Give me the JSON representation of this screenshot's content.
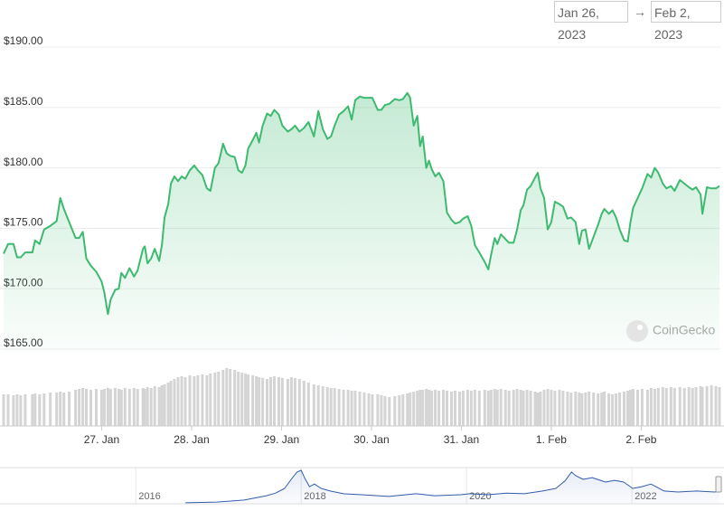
{
  "date_range": {
    "from": "Jan 26, 2023",
    "separator": "→",
    "to": "Feb 2, 2023"
  },
  "watermark": "CoinGecko",
  "chart_data": [
    {
      "type": "area",
      "color": "#3dba6f",
      "grid": true,
      "xlim": [
        -0.1,
        7.88
      ],
      "ylim": [
        164.7,
        191.2
      ],
      "xticks": [
        {
          "value": 1,
          "label": "27. Jan"
        },
        {
          "value": 2,
          "label": "28. Jan"
        },
        {
          "value": 3,
          "label": "29. Jan"
        },
        {
          "value": 4,
          "label": "30. Jan"
        },
        {
          "value": 5,
          "label": "31. Jan"
        },
        {
          "value": 6,
          "label": "1. Feb"
        },
        {
          "value": 7,
          "label": "2. Feb"
        }
      ],
      "yticks": [
        {
          "value": 165,
          "label": "$165.00"
        },
        {
          "value": 170,
          "label": "$170.00"
        },
        {
          "value": 175,
          "label": "$175.00"
        },
        {
          "value": 180,
          "label": "$180.00"
        },
        {
          "value": 185,
          "label": "$185.00"
        },
        {
          "value": 190,
          "label": "$190.00"
        }
      ],
      "x": [
        -0.09,
        -0.04,
        0.02,
        0.06,
        0.1,
        0.15,
        0.23,
        0.26,
        0.31,
        0.36,
        0.43,
        0.5,
        0.54,
        0.58,
        0.64,
        0.71,
        0.75,
        0.79,
        0.83,
        0.88,
        0.94,
        1.0,
        1.03,
        1.07,
        1.1,
        1.15,
        1.19,
        1.22,
        1.26,
        1.31,
        1.36,
        1.4,
        1.46,
        1.48,
        1.51,
        1.55,
        1.59,
        1.64,
        1.67,
        1.7,
        1.74,
        1.77,
        1.81,
        1.85,
        1.89,
        1.93,
        1.98,
        2.03,
        2.07,
        2.12,
        2.17,
        2.21,
        2.26,
        2.3,
        2.35,
        2.39,
        2.43,
        2.48,
        2.52,
        2.56,
        2.6,
        2.63,
        2.68,
        2.72,
        2.75,
        2.79,
        2.84,
        2.88,
        2.92,
        2.97,
        3.01,
        3.07,
        3.11,
        3.15,
        3.2,
        3.25,
        3.3,
        3.36,
        3.41,
        3.46,
        3.51,
        3.55,
        3.59,
        3.64,
        3.69,
        3.74,
        3.78,
        3.82,
        3.87,
        3.92,
        3.97,
        4.01,
        4.07,
        4.11,
        4.15,
        4.2,
        4.26,
        4.31,
        4.35,
        4.4,
        4.43,
        4.47,
        4.51,
        4.54,
        4.57,
        4.61,
        4.64,
        4.67,
        4.71,
        4.75,
        4.8,
        4.84,
        4.89,
        4.93,
        4.98,
        5.02,
        5.07,
        5.11,
        5.15,
        5.2,
        5.26,
        5.3,
        5.33,
        5.37,
        5.4,
        5.44,
        5.49,
        5.53,
        5.58,
        5.62,
        5.66,
        5.69,
        5.73,
        5.77,
        5.82,
        5.85,
        5.88,
        5.92,
        5.96,
        6.0,
        6.04,
        6.09,
        6.13,
        6.18,
        6.22,
        6.27,
        6.31,
        6.34,
        6.38,
        6.42,
        6.47,
        6.52,
        6.56,
        6.59,
        6.64,
        6.68,
        6.72,
        6.76,
        6.81,
        6.85,
        6.88,
        6.91,
        6.96,
        7.01,
        7.07,
        7.11,
        7.15,
        7.19,
        7.24,
        7.28,
        7.33,
        7.37,
        7.43,
        7.48,
        7.53,
        7.57,
        7.61,
        7.66,
        7.68,
        7.73,
        7.78,
        7.83,
        7.87
      ],
      "values": [
        172.9,
        173.7,
        173.7,
        172.6,
        172.6,
        173.0,
        173.0,
        174.0,
        173.7,
        174.9,
        175.2,
        175.6,
        177.5,
        176.6,
        175.5,
        174.2,
        174.2,
        174.7,
        172.5,
        171.9,
        171.4,
        170.6,
        169.7,
        167.9,
        169.1,
        169.9,
        170.0,
        171.3,
        170.9,
        171.7,
        171.0,
        171.5,
        173.3,
        173.5,
        172.1,
        172.5,
        173.3,
        172.3,
        173.6,
        175.9,
        177.0,
        178.7,
        179.3,
        178.9,
        179.3,
        179.1,
        179.8,
        180.2,
        179.8,
        179.4,
        178.3,
        178.1,
        180.0,
        180.4,
        182.0,
        181.2,
        181.0,
        180.9,
        179.8,
        179.6,
        180.2,
        181.6,
        182.3,
        182.9,
        182.1,
        183.5,
        184.5,
        184.3,
        184.8,
        184.4,
        183.5,
        183.0,
        183.2,
        183.5,
        183.0,
        183.3,
        183.8,
        182.6,
        184.7,
        183.2,
        182.4,
        182.6,
        183.5,
        184.4,
        184.7,
        185.1,
        184.0,
        185.6,
        185.9,
        185.8,
        185.8,
        185.8,
        184.8,
        184.8,
        185.2,
        185.3,
        185.7,
        185.6,
        185.7,
        186.2,
        185.8,
        183.5,
        184.3,
        181.8,
        182.6,
        180.0,
        180.6,
        179.9,
        179.3,
        179.6,
        178.9,
        176.3,
        175.7,
        175.4,
        175.5,
        175.8,
        176.0,
        175.2,
        173.6,
        173.0,
        172.2,
        171.6,
        172.8,
        174.2,
        173.7,
        174.5,
        174.1,
        173.8,
        173.8,
        174.9,
        176.5,
        176.9,
        178.2,
        178.5,
        179.2,
        179.6,
        178.3,
        177.5,
        174.9,
        175.5,
        177.2,
        177.0,
        176.8,
        175.8,
        175.9,
        175.5,
        173.7,
        174.8,
        174.9,
        173.3,
        174.3,
        175.3,
        176.2,
        176.6,
        176.2,
        176.5,
        175.9,
        174.9,
        174.0,
        173.9,
        175.5,
        176.7,
        177.5,
        178.3,
        179.5,
        179.2,
        180.0,
        179.6,
        178.7,
        178.3,
        178.5,
        178.1,
        179.0,
        178.7,
        178.4,
        178.2,
        178.4,
        177.8,
        176.2,
        178.4,
        178.3,
        178.3,
        178.5
      ]
    },
    {
      "type": "bar",
      "color": "#d4d4d4",
      "xlim": [
        -0.1,
        7.88
      ],
      "ylim": [
        0,
        70
      ],
      "x": [
        -0.09,
        -0.04,
        0.02,
        0.06,
        0.1,
        0.15,
        0.23,
        0.26,
        0.31,
        0.36,
        0.43,
        0.5,
        0.54,
        0.58,
        0.64,
        0.71,
        0.75,
        0.79,
        0.83,
        0.88,
        0.94,
        1.0,
        1.03,
        1.07,
        1.1,
        1.15,
        1.19,
        1.22,
        1.26,
        1.31,
        1.36,
        1.4,
        1.46,
        1.48,
        1.51,
        1.55,
        1.59,
        1.64,
        1.67,
        1.7,
        1.74,
        1.77,
        1.81,
        1.85,
        1.89,
        1.93,
        1.98,
        2.03,
        2.07,
        2.12,
        2.17,
        2.21,
        2.26,
        2.3,
        2.35,
        2.39,
        2.43,
        2.48,
        2.52,
        2.56,
        2.6,
        2.63,
        2.68,
        2.72,
        2.75,
        2.79,
        2.84,
        2.88,
        2.92,
        2.97,
        3.01,
        3.07,
        3.11,
        3.15,
        3.2,
        3.25,
        3.3,
        3.36,
        3.41,
        3.46,
        3.51,
        3.55,
        3.59,
        3.64,
        3.69,
        3.74,
        3.78,
        3.82,
        3.87,
        3.92,
        3.97,
        4.01,
        4.07,
        4.11,
        4.15,
        4.2,
        4.26,
        4.31,
        4.35,
        4.4,
        4.43,
        4.47,
        4.51,
        4.54,
        4.57,
        4.61,
        4.64,
        4.67,
        4.71,
        4.75,
        4.8,
        4.84,
        4.89,
        4.93,
        4.98,
        5.02,
        5.07,
        5.11,
        5.15,
        5.2,
        5.26,
        5.3,
        5.33,
        5.37,
        5.4,
        5.44,
        5.49,
        5.53,
        5.58,
        5.62,
        5.66,
        5.69,
        5.73,
        5.77,
        5.82,
        5.85,
        5.88,
        5.92,
        5.96,
        6.0,
        6.04,
        6.09,
        6.13,
        6.18,
        6.22,
        6.27,
        6.31,
        6.34,
        6.38,
        6.42,
        6.47,
        6.52,
        6.56,
        6.59,
        6.64,
        6.68,
        6.72,
        6.76,
        6.81,
        6.85,
        6.88,
        6.91,
        6.96,
        7.01,
        7.07,
        7.11,
        7.15,
        7.19,
        7.24,
        7.28,
        7.33,
        7.37,
        7.43,
        7.48,
        7.53,
        7.57,
        7.61,
        7.66,
        7.68,
        7.73,
        7.78,
        7.83,
        7.87
      ],
      "values": [
        35,
        35,
        34,
        35,
        34,
        35,
        35,
        36,
        35,
        36,
        37,
        37,
        38,
        37,
        38,
        40,
        41,
        42,
        41,
        40,
        41,
        40,
        41,
        42,
        41,
        42,
        41,
        40,
        42,
        41,
        42,
        41,
        42,
        41,
        43,
        42,
        44,
        43,
        45,
        46,
        48,
        50,
        52,
        54,
        55,
        54,
        56,
        55,
        56,
        57,
        56,
        58,
        59,
        60,
        62,
        64,
        63,
        62,
        60,
        59,
        58,
        57,
        56,
        55,
        54,
        53,
        52,
        54,
        55,
        54,
        53,
        52,
        54,
        53,
        52,
        50,
        48,
        46,
        45,
        44,
        43,
        42,
        42,
        41,
        40,
        40,
        39,
        39,
        38,
        37,
        36,
        35,
        35,
        34,
        33,
        32,
        33,
        34,
        35,
        36,
        37,
        38,
        39,
        40,
        40,
        41,
        40,
        39,
        40,
        39,
        40,
        39,
        38,
        39,
        38,
        39,
        40,
        39,
        40,
        39,
        40,
        39,
        40,
        41,
        40,
        41,
        40,
        39,
        40,
        41,
        40,
        39,
        40,
        39,
        38,
        37,
        38,
        40,
        41,
        40,
        39,
        40,
        39,
        38,
        37,
        38,
        37,
        36,
        37,
        38,
        37,
        36,
        37,
        38,
        36,
        35,
        36,
        37,
        38,
        39,
        40,
        41,
        40,
        41,
        40,
        42,
        41,
        42,
        43,
        42,
        43,
        42,
        43,
        42,
        43,
        42,
        43,
        44,
        43,
        44,
        45,
        44,
        43
      ]
    },
    {
      "type": "area",
      "color": "#335cad",
      "grid": true,
      "xlim": [
        2014.39,
        2023.07
      ],
      "ylim": [
        0,
        100
      ],
      "xticks": [
        2016,
        2018,
        2020,
        2022
      ],
      "x": [
        2016.6,
        2016.98,
        2017.31,
        2017.58,
        2017.69,
        2017.8,
        2017.88,
        2017.95,
        2018.0,
        2018.04,
        2018.1,
        2018.16,
        2018.24,
        2018.35,
        2018.51,
        2018.73,
        2019.06,
        2019.39,
        2019.61,
        2019.93,
        2020.04,
        2020.26,
        2020.48,
        2020.7,
        2020.92,
        2021.08,
        2021.19,
        2021.27,
        2021.32,
        2021.41,
        2021.52,
        2021.68,
        2021.79,
        2021.9,
        2022.01,
        2022.12,
        2022.23,
        2022.39,
        2022.56,
        2022.78,
        2023.0,
        2023.06
      ],
      "values": [
        3,
        5,
        11,
        24,
        32,
        46,
        73,
        95,
        100,
        78,
        51,
        59,
        46,
        38,
        30,
        27,
        22,
        30,
        24,
        27,
        30,
        27,
        32,
        30,
        38,
        46,
        68,
        95,
        84,
        73,
        78,
        65,
        70,
        65,
        46,
        51,
        59,
        38,
        35,
        38,
        35,
        38
      ]
    }
  ]
}
